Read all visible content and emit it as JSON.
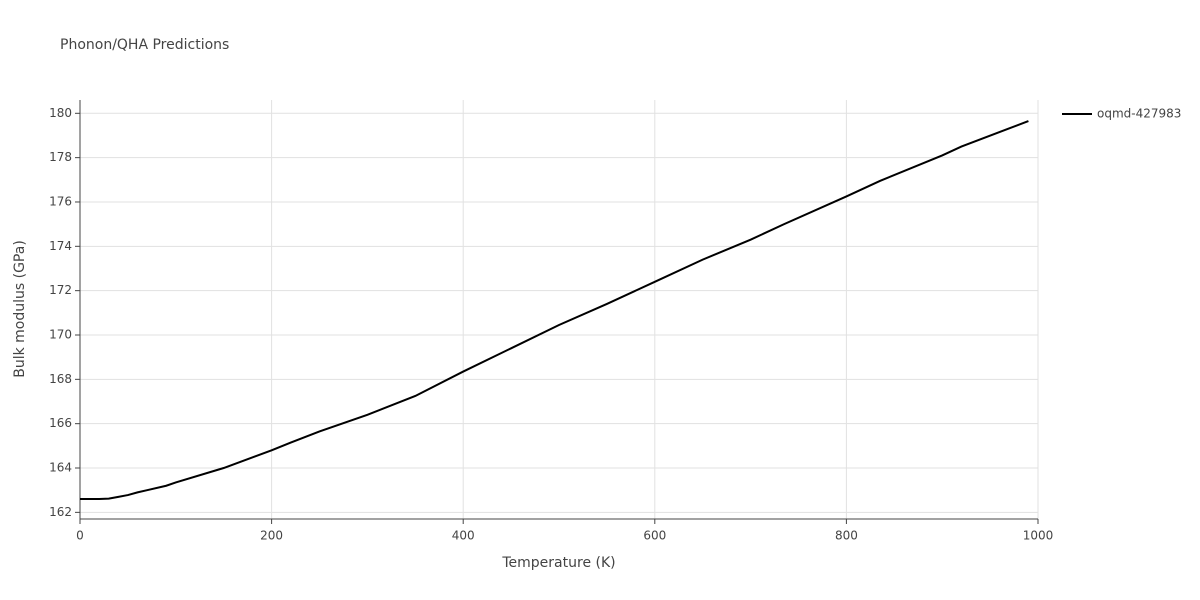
{
  "chart_data": {
    "type": "line",
    "title": "Phonon/QHA Predictions",
    "x_label": "Temperature (K)",
    "y_label": "Bulk modulus (GPa)",
    "x": [
      0,
      10,
      20,
      30,
      40,
      50,
      60,
      70,
      90,
      100,
      150,
      200,
      220,
      250,
      300,
      350,
      400,
      450,
      500,
      550,
      600,
      650,
      700,
      735,
      800,
      835,
      900,
      920,
      990
    ],
    "series": [
      {
        "name": "oqmd-427983",
        "color": "#000000",
        "values": [
          162.6,
          162.6,
          162.6,
          162.62,
          162.7,
          162.78,
          162.9,
          163.0,
          163.2,
          163.35,
          164.0,
          164.8,
          165.15,
          165.65,
          166.4,
          167.25,
          168.35,
          169.4,
          170.45,
          171.4,
          172.4,
          173.4,
          174.3,
          175.0,
          176.25,
          176.95,
          178.1,
          178.5,
          179.65
        ]
      }
    ],
    "xlim": [
      0,
      1000
    ],
    "xticks": [
      0,
      200,
      400,
      600,
      800,
      1000
    ],
    "ylim": [
      161.7,
      180.6
    ],
    "yticks": [
      162,
      164,
      166,
      168,
      170,
      172,
      174,
      176,
      178,
      180
    ],
    "grid": true,
    "legend": "right"
  }
}
